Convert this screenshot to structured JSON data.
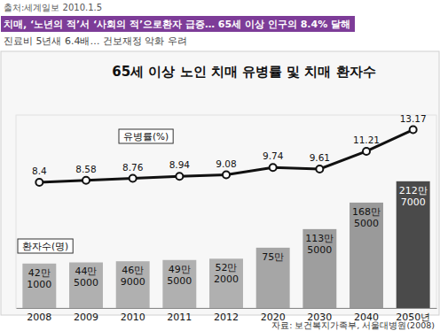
{
  "chart_data": {
    "type": "bar",
    "source": "출처:세계일보 2010.1.5",
    "headline": "치매, ‘노년의 적’서 ‘사회의 적’으로환자 급증… 65세 이상 인구의 8.4% 달해",
    "subtitle": "진료비 5년새 6.4배… 건보재정 악화 우려",
    "title": "65세 이상 노인 치매 유병률 및 치매 환자수",
    "note": "자료: 보건복지가족부, 서울대병원(2008)",
    "categories": [
      "2008",
      "2009",
      "2010",
      "2011",
      "2012",
      "2020",
      "2030",
      "2040",
      "2050년"
    ],
    "series": [
      {
        "name": "환자수(명)",
        "type": "bar",
        "colors": [
          "#b0b0b0",
          "#b0b0b0",
          "#b0b0b0",
          "#b0b0b0",
          "#b0b0b0",
          "#a6a6a6",
          "#9e9e9e",
          "#9a9a9a",
          "#4a4a4a"
        ],
        "values": [
          421000,
          445000,
          469000,
          495000,
          522000,
          750000,
          1135000,
          1685000,
          2127000
        ],
        "value_labels": [
          "42만 1000",
          "44만 5000",
          "46만 9000",
          "49만 5000",
          "52만 2000",
          "75만",
          "113만 5000",
          "168만 5000",
          "212만 7000"
        ],
        "data_labels": true
      },
      {
        "name": "유병률(%)",
        "type": "line",
        "axis": "y2",
        "color": "#111111",
        "marker": "circle",
        "values": [
          8.4,
          8.58,
          8.76,
          8.94,
          9.08,
          9.74,
          9.61,
          11.21,
          13.17
        ],
        "data_labels": true
      }
    ],
    "ylim": [
      -500000,
      3500000
    ],
    "y2lim": [
      -3,
      14.5
    ],
    "tick_labels": "x",
    "grid": false
  }
}
